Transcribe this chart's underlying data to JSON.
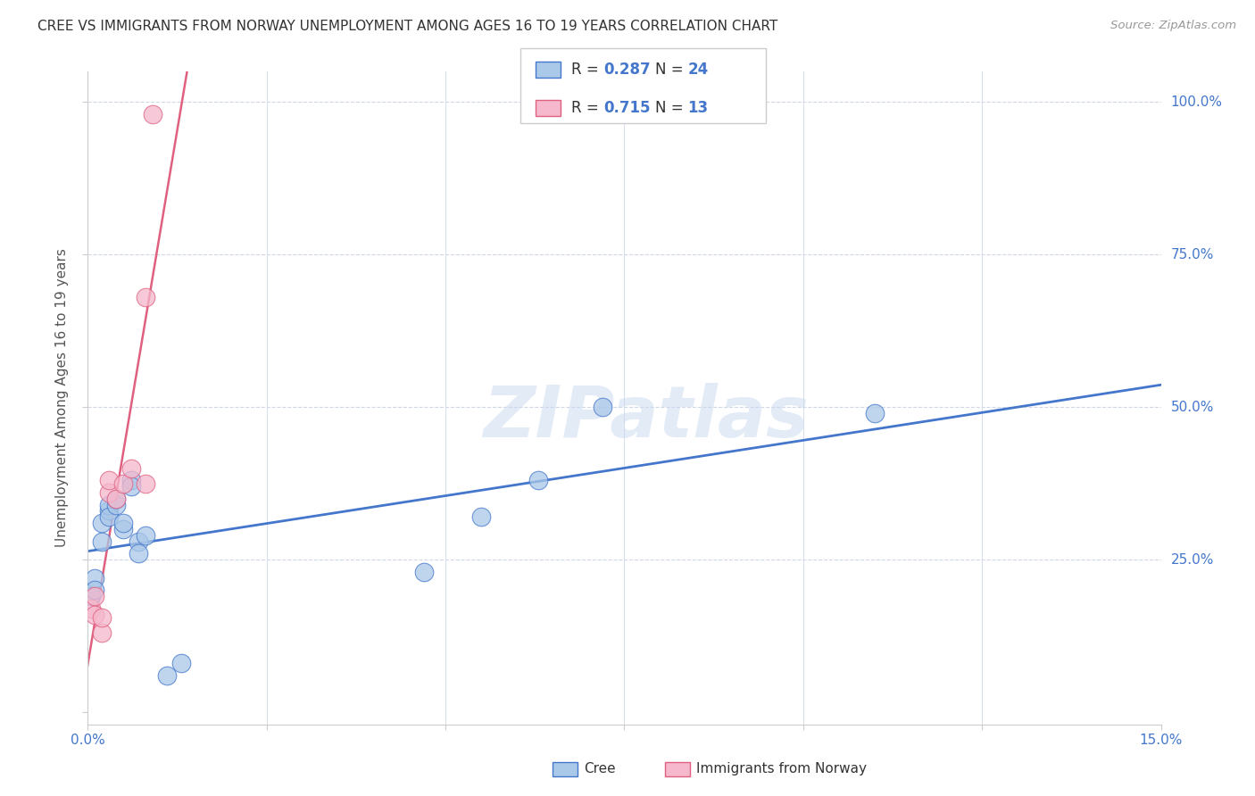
{
  "title": "CREE VS IMMIGRANTS FROM NORWAY UNEMPLOYMENT AMONG AGES 16 TO 19 YEARS CORRELATION CHART",
  "source": "Source: ZipAtlas.com",
  "ylabel": "Unemployment Among Ages 16 to 19 years",
  "xlim": [
    0.0,
    0.15
  ],
  "ylim": [
    -0.02,
    1.05
  ],
  "xticks": [
    0.0,
    0.025,
    0.05,
    0.075,
    0.1,
    0.125,
    0.15
  ],
  "xticklabels": [
    "0.0%",
    "",
    "",
    "",
    "",
    "",
    "15.0%"
  ],
  "yticks": [
    0.0,
    0.25,
    0.5,
    0.75,
    1.0
  ],
  "yticklabels": [
    "",
    "25.0%",
    "50.0%",
    "75.0%",
    "100.0%"
  ],
  "cree_x": [
    0.0005,
    0.001,
    0.001,
    0.002,
    0.002,
    0.003,
    0.003,
    0.003,
    0.004,
    0.004,
    0.005,
    0.005,
    0.006,
    0.006,
    0.007,
    0.007,
    0.008,
    0.011,
    0.013,
    0.047,
    0.055,
    0.063,
    0.072,
    0.11
  ],
  "cree_y": [
    0.19,
    0.22,
    0.2,
    0.31,
    0.28,
    0.33,
    0.34,
    0.32,
    0.34,
    0.35,
    0.3,
    0.31,
    0.38,
    0.37,
    0.28,
    0.26,
    0.29,
    0.06,
    0.08,
    0.23,
    0.32,
    0.38,
    0.5,
    0.49
  ],
  "norway_x": [
    0.0005,
    0.001,
    0.001,
    0.002,
    0.002,
    0.003,
    0.003,
    0.004,
    0.005,
    0.006,
    0.008,
    0.008,
    0.009
  ],
  "norway_y": [
    0.17,
    0.19,
    0.16,
    0.13,
    0.155,
    0.36,
    0.38,
    0.35,
    0.375,
    0.4,
    0.68,
    0.375,
    0.98
  ],
  "cree_R": 0.287,
  "cree_N": 24,
  "norway_R": 0.715,
  "norway_N": 13,
  "cree_color": "#aac8e8",
  "norway_color": "#f5b8cc",
  "cree_line_color": "#4477cc",
  "norway_line_color": "#e06080",
  "watermark_text": "ZIPatlas",
  "background_color": "#ffffff",
  "grid_color": "#d0d8e8",
  "title_color": "#333333",
  "axis_label_color": "#4477cc",
  "legend_val_color": "#4477cc",
  "right_ytick_color": "#4477cc"
}
